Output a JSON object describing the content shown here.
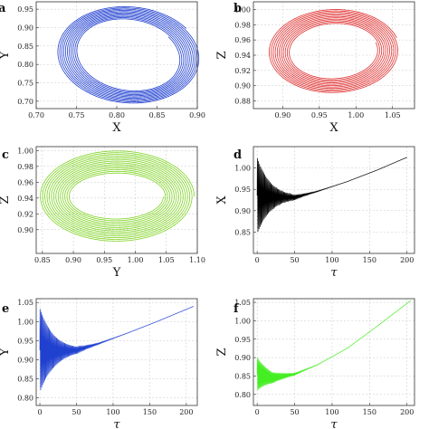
{
  "chart_data": [
    {
      "panel": "a",
      "type": "line",
      "curve": "spiral",
      "xlabel": "X",
      "ylabel": "Y",
      "xlim": [
        0.7,
        0.9
      ],
      "ylim": [
        0.68,
        0.97
      ],
      "xticks": [
        "0.70",
        "0.75",
        "0.80",
        "0.85",
        "0.90"
      ],
      "yticks": [
        "0.70",
        "0.75",
        "0.80",
        "0.85",
        "0.90",
        "0.95"
      ],
      "color": "#1f3fd0",
      "series": [
        {
          "center": [
            0.815,
            0.825
          ],
          "radius_x": [
            0.06,
            0.087
          ],
          "radius_y": [
            0.1,
            0.135
          ],
          "tilt_deg": 35,
          "turns": 11
        }
      ]
    },
    {
      "panel": "b",
      "type": "line",
      "curve": "spiral",
      "xlabel": "X",
      "ylabel": "Z",
      "xlim": [
        0.86,
        1.08
      ],
      "ylim": [
        0.87,
        1.01
      ],
      "xticks": [
        "0.90",
        "0.95",
        "1.00",
        "1.05"
      ],
      "yticks": [
        "0.88",
        "0.90",
        "0.92",
        "0.94",
        "0.96",
        "0.98",
        "1.00"
      ],
      "color": "#e03030",
      "series": [
        {
          "center": [
            0.97,
            0.945
          ],
          "radius_x": [
            0.06,
            0.09
          ],
          "radius_y": [
            0.035,
            0.055
          ],
          "tilt_deg": 18,
          "turns": 11
        }
      ]
    },
    {
      "panel": "c",
      "type": "line",
      "curve": "spiral",
      "xlabel": "Y",
      "ylabel": "Z",
      "xlim": [
        0.84,
        1.1
      ],
      "ylim": [
        0.87,
        1.005
      ],
      "xticks": [
        "0.85",
        "0.90",
        "0.95",
        "1.00",
        "1.05",
        "1.10"
      ],
      "yticks": [
        "0.90",
        "0.92",
        "0.94",
        "0.96",
        "0.98",
        "1.00"
      ],
      "color": "#7ed321",
      "series": [
        {
          "center": [
            0.97,
            0.942
          ],
          "radius_x": [
            0.075,
            0.125
          ],
          "radius_y": [
            0.028,
            0.058
          ],
          "tilt_deg": 0,
          "turns": 14
        }
      ]
    },
    {
      "panel": "d",
      "type": "line",
      "xlabel": "τ",
      "ylabel": "X",
      "xlim": [
        -5,
        210
      ],
      "ylim": [
        0.8,
        1.05
      ],
      "xticks": [
        "0",
        "50",
        "100",
        "150",
        "200"
      ],
      "yticks": [
        "0.85",
        "0.90",
        "0.95",
        "1.00"
      ],
      "color": "#000000",
      "series": [
        {
          "base_points": [
            [
              0,
              0.935
            ],
            [
              20,
              0.932
            ],
            [
              50,
              0.931
            ],
            [
              80,
              0.945
            ],
            [
              120,
              0.968
            ],
            [
              160,
              0.995
            ],
            [
              200,
              1.025
            ]
          ],
          "oscillation_amplitude": 0.09,
          "decay_tau": 18,
          "period": 1.4
        }
      ]
    },
    {
      "panel": "e",
      "type": "line",
      "xlabel": "τ",
      "ylabel": "Y",
      "xlim": [
        -5,
        215
      ],
      "ylim": [
        0.78,
        1.06
      ],
      "xticks": [
        "0",
        "50",
        "100",
        "150",
        "200"
      ],
      "yticks": [
        "0.80",
        "0.85",
        "0.90",
        "0.95",
        "1.00",
        "1.05"
      ],
      "color": "#2040d0",
      "series": [
        {
          "base_points": [
            [
              0,
              0.925
            ],
            [
              20,
              0.922
            ],
            [
              50,
              0.925
            ],
            [
              80,
              0.942
            ],
            [
              120,
              0.97
            ],
            [
              160,
              1.0
            ],
            [
              210,
              1.04
            ]
          ],
          "oscillation_amplitude": 0.11,
          "decay_tau": 20,
          "period": 1.4
        }
      ]
    },
    {
      "panel": "f",
      "type": "line",
      "xlabel": "τ",
      "ylabel": "Z",
      "xlim": [
        -5,
        210
      ],
      "ylim": [
        0.77,
        1.06
      ],
      "xticks": [
        "0",
        "50",
        "100",
        "150",
        "200"
      ],
      "yticks": [
        "0.80",
        "0.85",
        "0.90",
        "0.95",
        "1.00",
        "1.05"
      ],
      "color": "#44ee22",
      "series": [
        {
          "base_points": [
            [
              0,
              0.855
            ],
            [
              20,
              0.845
            ],
            [
              50,
              0.855
            ],
            [
              80,
              0.88
            ],
            [
              120,
              0.925
            ],
            [
              160,
              0.985
            ],
            [
              205,
              1.055
            ]
          ],
          "oscillation_amplitude": 0.045,
          "decay_tau": 18,
          "period": 1.2
        }
      ]
    }
  ]
}
